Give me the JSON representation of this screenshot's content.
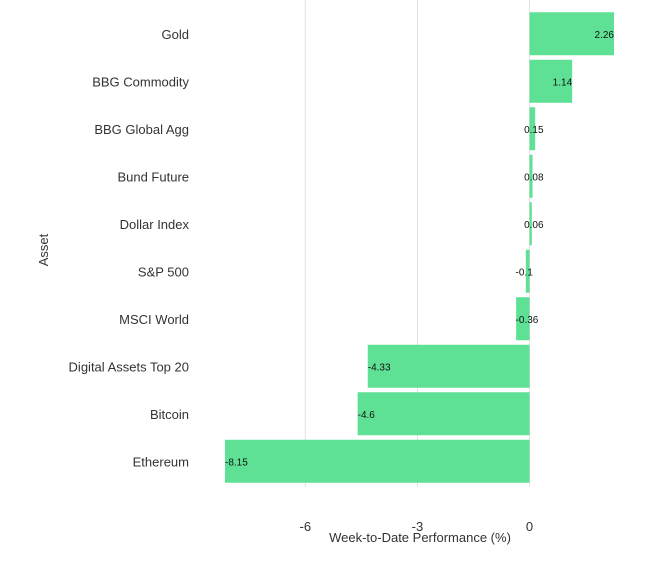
{
  "chart_data": {
    "type": "bar",
    "orientation": "horizontal",
    "categories": [
      "Gold",
      "BBG Commodity",
      "BBG Global Agg",
      "Bund Future",
      "Dollar Index",
      "S&P 500",
      "MSCI World",
      "Digital Assets Top 20",
      "Bitcoin",
      "Ethereum"
    ],
    "values": [
      2.26,
      1.14,
      0.15,
      0.08,
      0.06,
      -0.1,
      -0.36,
      -4.33,
      -4.6,
      -8.15
    ],
    "data_labels": [
      "2.26",
      "1.14",
      "0.15",
      "0.08",
      "0.06",
      "-0.1",
      "-0.36",
      "-4.33",
      "-4.6",
      "-8.15"
    ],
    "xlabel": "Week-to-Date Performance (%)",
    "ylabel": "Asset",
    "xlim": [
      -8.15,
      2.26
    ],
    "xticks": [
      -6,
      -3,
      0
    ],
    "xtick_labels": [
      "-6",
      "-3",
      "0"
    ],
    "grid": "vertical",
    "legend": "none",
    "bar_color": "#5fe195",
    "grid_color": "#e0e0e0",
    "text_color": "#333333"
  }
}
